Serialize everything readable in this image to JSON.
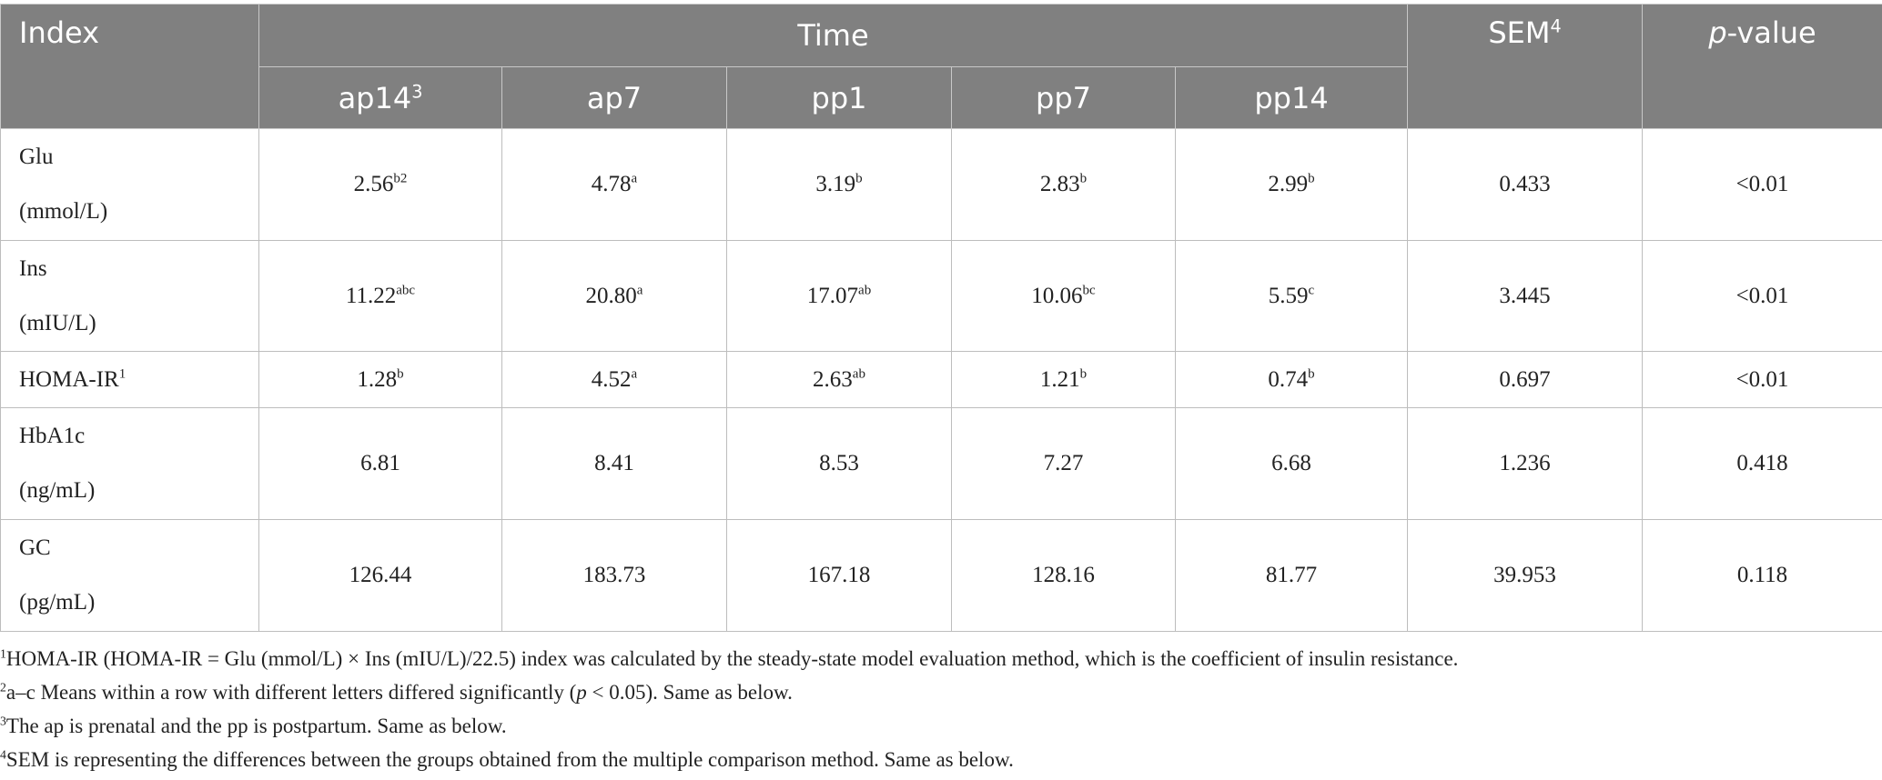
{
  "header": {
    "index": "Index",
    "time": "Time",
    "timepoints": [
      {
        "text": "ap14",
        "sup": "3"
      },
      {
        "text": "ap7"
      },
      {
        "text": "pp1"
      },
      {
        "text": "pp7"
      },
      {
        "text": "pp14"
      }
    ],
    "sem": {
      "text": "SEM",
      "sup": "4"
    },
    "pvalue": [
      "p",
      "-value"
    ]
  },
  "rows": [
    {
      "name": "Glu",
      "unit": "(mmol/L)",
      "cells": [
        {
          "v": "2.56",
          "sup": "b2"
        },
        {
          "v": "4.78",
          "sup": "a"
        },
        {
          "v": "3.19",
          "sup": "b"
        },
        {
          "v": "2.83",
          "sup": "b"
        },
        {
          "v": "2.99",
          "sup": "b"
        }
      ],
      "sem": "0.433",
      "p": "<0.01"
    },
    {
      "name": "Ins",
      "unit": "(mIU/L)",
      "cells": [
        {
          "v": "11.22",
          "sup": "abc"
        },
        {
          "v": "20.80",
          "sup": "a"
        },
        {
          "v": "17.07",
          "sup": "ab"
        },
        {
          "v": "10.06",
          "sup": "bc"
        },
        {
          "v": "5.59",
          "sup": "c"
        }
      ],
      "sem": "3.445",
      "p": "<0.01"
    },
    {
      "name": "HOMA-IR",
      "sup": "1",
      "cells": [
        {
          "v": "1.28",
          "sup": "b"
        },
        {
          "v": "4.52",
          "sup": "a"
        },
        {
          "v": "2.63",
          "sup": "ab"
        },
        {
          "v": "1.21",
          "sup": "b"
        },
        {
          "v": "0.74",
          "sup": "b"
        }
      ],
      "sem": "0.697",
      "p": "<0.01"
    },
    {
      "name": "HbA1c",
      "unit": "(ng/mL)",
      "cells": [
        {
          "v": "6.81"
        },
        {
          "v": "8.41"
        },
        {
          "v": "8.53"
        },
        {
          "v": "7.27"
        },
        {
          "v": "6.68"
        }
      ],
      "sem": "1.236",
      "p": "0.418"
    },
    {
      "name": "GC",
      "unit": "(pg/mL)",
      "cells": [
        {
          "v": "126.44"
        },
        {
          "v": "183.73"
        },
        {
          "v": "167.18"
        },
        {
          "v": "128.16"
        },
        {
          "v": "81.77"
        }
      ],
      "sem": "39.953",
      "p": "0.118"
    }
  ],
  "footnotes": [
    {
      "mark": "1",
      "text": [
        "HOMA-IR (HOMA-IR = Glu (mmol/L) × Ins (mIU/L)/22.5) index was calculated by the steady-state model evaluation method, which is the coefficient of insulin resistance."
      ]
    },
    {
      "mark": "2",
      "text": [
        "a–c Means within a row with different letters differed significantly (",
        "p",
        " < 0.05). Same as below."
      ]
    },
    {
      "mark": "3",
      "text": [
        "The ap is prenatal and the pp is postpartum. Same as below."
      ]
    },
    {
      "mark": "4",
      "text": [
        "SEM is representing the differences between the groups obtained from the multiple comparison method. Same as below."
      ]
    }
  ]
}
